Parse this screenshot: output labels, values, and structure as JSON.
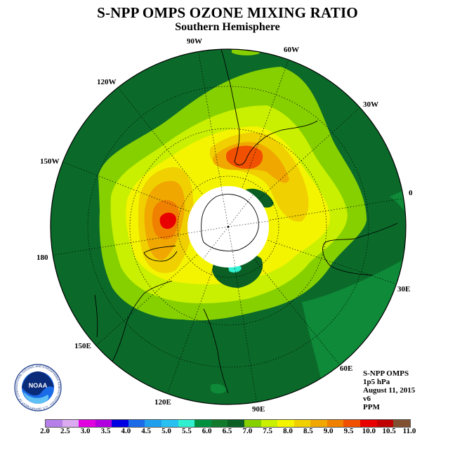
{
  "header": {
    "title": "S-NPP OMPS OZONE MIXING RATIO",
    "subtitle": "Southern Hemisphere"
  },
  "map": {
    "projection": "polar-stereographic-south",
    "longitude_labels": [
      "90W",
      "60W",
      "30W",
      "0",
      "30E",
      "60E",
      "90E",
      "120E",
      "150E",
      "180",
      "150W",
      "120W"
    ],
    "background_color": "#0b6a2a"
  },
  "info": {
    "lines": [
      "S-NPP OMPS",
      "1p5 hPa",
      "August 11, 2015",
      "v6",
      "PPM"
    ]
  },
  "logo": {
    "text": "NOAA",
    "ring_text": "NATIONAL OCEANIC AND ATMOSPHERIC ADMINISTRATION · U.S. DEPARTMENT OF COMMERCE"
  },
  "colorbar": {
    "colors": [
      "#b77fe8",
      "#dcaaf0",
      "#e000e0",
      "#b000e0",
      "#0000e0",
      "#1b6be8",
      "#1ea0ee",
      "#28c0f0",
      "#30f0d0",
      "#009040",
      "#127a2c",
      "#0b5e24",
      "#86d000",
      "#c8f000",
      "#f4f400",
      "#f0d000",
      "#f0a800",
      "#f08000",
      "#f05000",
      "#e80000",
      "#c00000",
      "#805030"
    ],
    "ticks": [
      "2.0",
      "2.5",
      "3.0",
      "3.5",
      "4.0",
      "4.5",
      "5.0",
      "5.5",
      "6.0",
      "6.5",
      "7.0",
      "7.5",
      "8.0",
      "8.5",
      "9.0",
      "9.5",
      "10.0",
      "10.5",
      "11.0"
    ]
  }
}
